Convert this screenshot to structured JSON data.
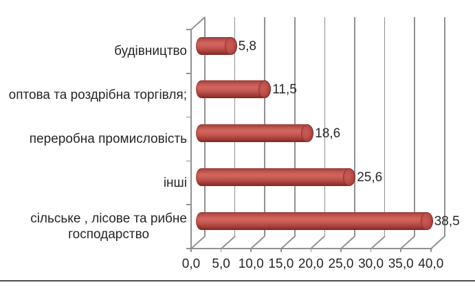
{
  "chart_data": {
    "type": "bar",
    "subtype": "3d-cylinder-horizontal",
    "title": "",
    "xlabel": "",
    "ylabel": "",
    "categories": [
      "будівництво",
      "оптова та роздрібна торгівля;",
      "переробна промисловість",
      "інші",
      "сільське , лісове та рибне господарство"
    ],
    "category_lines": [
      [
        "будівництво"
      ],
      [
        "оптова та роздрібна торгівля;"
      ],
      [
        "переробна промисловість"
      ],
      [
        "інші"
      ],
      [
        "сільське , лісове та рибне",
        "господарство"
      ]
    ],
    "values": [
      5.8,
      11.5,
      18.6,
      25.6,
      38.5
    ],
    "data_labels": [
      "5,8",
      "11,5",
      "18,6",
      "25,6",
      "38,5"
    ],
    "x_tick_labels": [
      "0,0",
      "5,0",
      "10,0",
      "15,0",
      "20,0",
      "25,0",
      "30,0",
      "35,0",
      "40,0"
    ],
    "x_tick_values": [
      0,
      5,
      10,
      15,
      20,
      25,
      30,
      35,
      40
    ],
    "xlim": [
      0,
      40
    ],
    "grid": true,
    "legend": false,
    "colors": {
      "bar_base": "#c0504d",
      "bar_highlight": "#d2655d",
      "bar_shadow": "#7f2b28",
      "gridline": "#909090",
      "text": "#262626",
      "background": "#ffffff",
      "bottom_rule": "#4d4d4d"
    }
  }
}
